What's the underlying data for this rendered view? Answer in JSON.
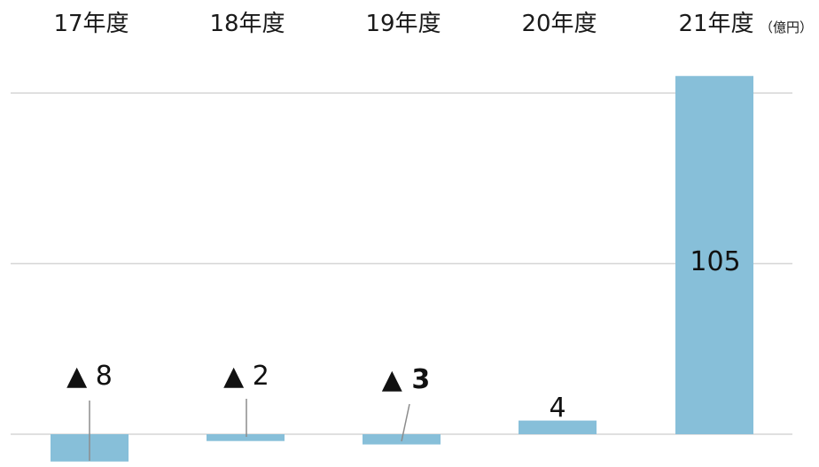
{
  "chart_data": {
    "type": "bar",
    "categories": [
      "17年度",
      "18年度",
      "19年度",
      "20年度",
      "21年度"
    ],
    "values": [
      -8,
      -2,
      -3,
      4,
      105
    ],
    "data_labels": [
      "▲ 8",
      "▲ 2",
      "▲ 3",
      "4",
      "105"
    ],
    "unit": "（億円）",
    "ylim": [
      -9,
      110
    ],
    "gridlines": [
      0,
      50,
      100
    ],
    "grid": true,
    "legend": "none",
    "bar_color": "#87bfd9"
  }
}
